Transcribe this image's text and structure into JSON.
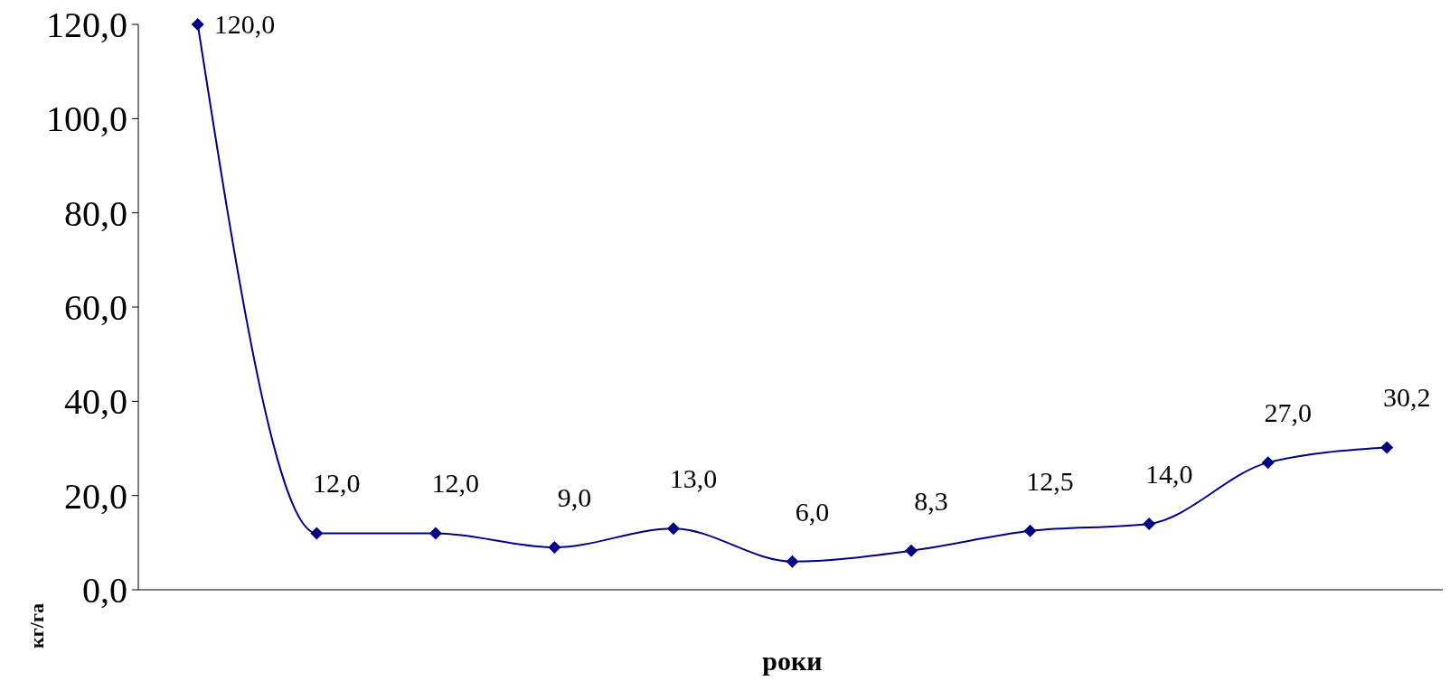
{
  "chart_data": {
    "type": "line",
    "xlabel": "роки",
    "ylabel": "кг/га",
    "categories": [
      null,
      null,
      null,
      null,
      null,
      null,
      null,
      null,
      null,
      null,
      null
    ],
    "series": [
      {
        "color": "#000080",
        "values": [
          120.0,
          12.0,
          12.0,
          9.0,
          13.0,
          6.0,
          8.3,
          12.5,
          14.0,
          27.0,
          30.2
        ],
        "value_labels": [
          "120,0",
          "12,0",
          "12,0",
          "9,0",
          "13,0",
          "6,0",
          "8,3",
          "12,5",
          "14,0",
          "27,0",
          "30,2"
        ]
      }
    ],
    "ylim": [
      0,
      120
    ],
    "yticks": [
      {
        "value": 0,
        "label": "0,0"
      },
      {
        "value": 20,
        "label": "20,0"
      },
      {
        "value": 40,
        "label": "40,0"
      },
      {
        "value": 60,
        "label": "60,0"
      },
      {
        "value": 80,
        "label": "80,0"
      },
      {
        "value": 100,
        "label": "100,0"
      },
      {
        "value": 120,
        "label": "120,0"
      }
    ],
    "grid": false,
    "marker": "diamond",
    "line_style": "solid"
  }
}
